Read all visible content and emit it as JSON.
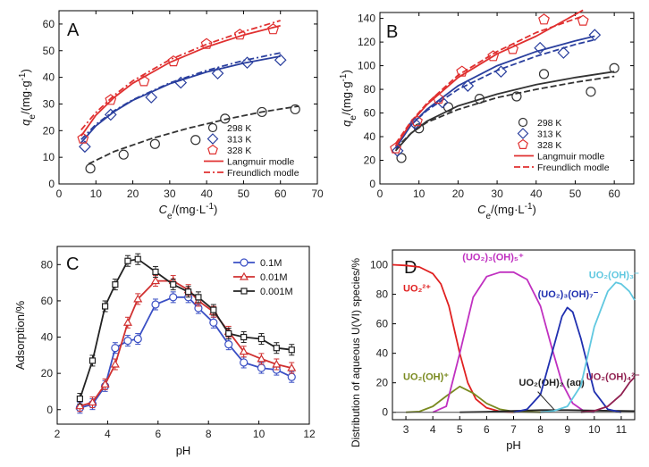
{
  "chart_data": [
    {
      "panel": "A",
      "type": "scatter",
      "xlabel": "Ce/(mg·L-1)",
      "ylabel": "qe/(mg·g-1)",
      "xlim": [
        0,
        70
      ],
      "ylim": [
        0,
        65
      ],
      "xticks": [
        0,
        10,
        20,
        30,
        40,
        50,
        60,
        70
      ],
      "yticks": [
        0,
        10,
        20,
        30,
        40,
        50,
        60
      ],
      "legend": "bottom-right",
      "legend_entries": [
        "298 K",
        "313 K",
        "328 K",
        "Langmuir modle",
        "Freundlich modle"
      ],
      "series": [
        {
          "name": "298 K",
          "marker": "circle",
          "color": "#333333",
          "x": [
            8.5,
            17.5,
            26,
            37,
            45,
            55,
            64
          ],
          "y": [
            5.8,
            11,
            15,
            16.5,
            24.5,
            27,
            28
          ]
        },
        {
          "name": "313 K",
          "marker": "diamond",
          "color": "#2a3f9e",
          "x": [
            7,
            14,
            25,
            33,
            43,
            51,
            60
          ],
          "y": [
            14,
            26,
            32.5,
            38,
            41.5,
            45.5,
            46.5
          ]
        },
        {
          "name": "328 K",
          "marker": "pentagon",
          "color": "#e03030",
          "x": [
            6.5,
            14,
            23,
            31,
            40,
            49,
            58
          ],
          "y": [
            17,
            31.5,
            38.5,
            46,
            52.5,
            56,
            58
          ]
        }
      ],
      "fits": [
        {
          "series": "298 K",
          "model": "Freundlich",
          "x": [
            8,
            15,
            25,
            35,
            45,
            55,
            65
          ],
          "y": [
            7.5,
            12.2,
            17.0,
            20.9,
            24.2,
            27.0,
            29.2
          ]
        },
        {
          "series": "313 K",
          "model": "Langmuir",
          "x": [
            6,
            10,
            15,
            20,
            30,
            40,
            50,
            60
          ],
          "y": [
            15.5,
            21.8,
            27.2,
            31.4,
            37.6,
            42.0,
            45.3,
            47.9
          ]
        },
        {
          "series": "313 K",
          "model": "Freundlich",
          "x": [
            6,
            10,
            15,
            20,
            30,
            40,
            50,
            60
          ],
          "y": [
            16.7,
            22.3,
            27.5,
            31.6,
            37.9,
            42.6,
            46.3,
            49.2
          ]
        },
        {
          "series": "328 K",
          "model": "Langmuir",
          "x": [
            6,
            10,
            15,
            20,
            30,
            40,
            50,
            60
          ],
          "y": [
            18.0,
            25.8,
            32.5,
            37.8,
            45.6,
            51.4,
            55.9,
            59.4
          ]
        },
        {
          "series": "328 K",
          "model": "Freundlich",
          "x": [
            6,
            10,
            15,
            20,
            30,
            40,
            50,
            60
          ],
          "y": [
            20.3,
            26.8,
            33.3,
            38.7,
            46.6,
            52.4,
            57.2,
            61.3
          ]
        }
      ]
    },
    {
      "panel": "B",
      "type": "scatter",
      "xlabel": "Ce/(mg·L-1)",
      "ylabel": "qe/(mg·g-1)",
      "xlim": [
        0,
        65
      ],
      "ylim": [
        0,
        145
      ],
      "xticks": [
        0,
        10,
        20,
        30,
        40,
        50,
        60
      ],
      "yticks": [
        0,
        20,
        40,
        60,
        80,
        100,
        120,
        140
      ],
      "legend": "bottom-right",
      "legend_entries": [
        "298 K",
        "313 K",
        "328 K",
        "Langmuir modle",
        "Freundlich modle"
      ],
      "series": [
        {
          "name": "298 K",
          "marker": "circle",
          "color": "#333333",
          "x": [
            5.5,
            10,
            17.5,
            25.5,
            35,
            42,
            54,
            60
          ],
          "y": [
            22,
            47,
            65,
            72,
            74,
            93,
            78,
            98
          ]
        },
        {
          "name": "313 K",
          "marker": "diamond",
          "color": "#2a3f9e",
          "x": [
            4.5,
            9,
            16,
            22.5,
            31,
            41,
            47,
            55
          ],
          "y": [
            28,
            51,
            69,
            83,
            95,
            115,
            111,
            126
          ]
        },
        {
          "name": "328 K",
          "marker": "pentagon",
          "color": "#e03030",
          "x": [
            4,
            9.5,
            15,
            21,
            29,
            34,
            42,
            52
          ],
          "y": [
            30,
            53,
            72,
            95,
            108,
            114,
            139,
            138
          ]
        }
      ],
      "fits": [
        {
          "series": "298 K",
          "model": "Langmuir",
          "x": [
            4,
            8,
            12,
            20,
            30,
            40,
            50,
            60
          ],
          "y": [
            28,
            43,
            53,
            66,
            76,
            84,
            90,
            95
          ]
        },
        {
          "series": "298 K",
          "model": "Freundlich",
          "x": [
            4,
            8,
            12,
            20,
            30,
            40,
            50,
            60
          ],
          "y": [
            30,
            43,
            52,
            63,
            73,
            80,
            86,
            91
          ]
        },
        {
          "series": "313 K",
          "model": "Langmuir",
          "x": [
            4,
            8,
            12,
            20,
            30,
            40,
            50,
            55
          ],
          "y": [
            30,
            50,
            63,
            83,
            100,
            112,
            121,
            125
          ]
        },
        {
          "series": "313 K",
          "model": "Freundlich",
          "x": [
            4,
            8,
            12,
            20,
            30,
            40,
            50,
            55
          ],
          "y": [
            32,
            50,
            62,
            80,
            96,
            108,
            118,
            122
          ]
        },
        {
          "series": "328 K",
          "model": "Langmuir",
          "x": [
            4,
            8,
            12,
            20,
            30,
            40,
            52
          ],
          "y": [
            32,
            52,
            67,
            90,
            110,
            125,
            147
          ]
        },
        {
          "series": "328 K",
          "model": "Freundlich",
          "x": [
            4,
            8,
            12,
            20,
            30,
            40,
            52
          ],
          "y": [
            34,
            53,
            68,
            92,
            112,
            128,
            142
          ]
        }
      ]
    },
    {
      "panel": "C",
      "type": "line",
      "xlabel": "pH",
      "ylabel": "Adsorption/%",
      "xlim": [
        2,
        12
      ],
      "ylim": [
        -8,
        90
      ],
      "xticks": [
        2,
        4,
        6,
        8,
        10,
        12
      ],
      "yticks": [
        0,
        20,
        40,
        60,
        80
      ],
      "legend": "top-right",
      "error_bars": true,
      "series": [
        {
          "name": "0.1M",
          "marker": "circle",
          "color": "#3a4fc4",
          "x": [
            2.9,
            3.4,
            3.9,
            4.3,
            4.8,
            5.2,
            5.9,
            6.6,
            7.2,
            7.6,
            8.2,
            8.8,
            9.4,
            10.1,
            10.7,
            11.3
          ],
          "y": [
            1,
            3,
            13,
            34,
            38,
            39,
            58,
            62,
            62,
            56,
            48,
            36,
            26,
            23,
            22,
            18
          ]
        },
        {
          "name": "0.01M",
          "marker": "triangle",
          "color": "#d03030",
          "x": [
            2.9,
            3.4,
            3.9,
            4.3,
            4.8,
            5.2,
            5.9,
            6.6,
            7.2,
            7.6,
            8.2,
            8.8,
            9.4,
            10.1,
            10.7,
            11.3
          ],
          "y": [
            2,
            4,
            14,
            25,
            48,
            61,
            71,
            71,
            66,
            60,
            54,
            43,
            32,
            28,
            25,
            23
          ]
        },
        {
          "name": "0.001M",
          "marker": "square",
          "color": "#222222",
          "x": [
            2.9,
            3.4,
            3.9,
            4.3,
            4.8,
            5.2,
            5.9,
            6.6,
            7.2,
            7.6,
            8.2,
            8.8,
            9.4,
            10.1,
            10.7,
            11.3
          ],
          "y": [
            6,
            27,
            57,
            69,
            82,
            83,
            76,
            69,
            65,
            62,
            55,
            42,
            40,
            39,
            34,
            33
          ]
        }
      ]
    },
    {
      "panel": "D",
      "type": "line",
      "xlabel": "pH",
      "ylabel": "Distribution of aqueous U(VI) species/%",
      "xlim": [
        2.5,
        11.5
      ],
      "ylim": [
        -5,
        110
      ],
      "xticks": [
        3,
        4,
        5,
        6,
        7,
        8,
        9,
        10,
        11
      ],
      "yticks": [
        0,
        20,
        40,
        60,
        80,
        100
      ],
      "legend": "none",
      "series": [
        {
          "name": "UO2 2+",
          "label": "UO₂²⁺",
          "color": "#e02020",
          "label_x": 2.9,
          "label_y": 82,
          "x": [
            2.5,
            3,
            3.5,
            4,
            4.3,
            4.6,
            5,
            5.3,
            5.6,
            6,
            6.5,
            7
          ],
          "y": [
            100,
            99.5,
            98.5,
            94,
            87,
            72,
            40,
            20,
            9,
            3,
            0.5,
            0
          ]
        },
        {
          "name": "UO2(OH)+",
          "label": "UO₂(OH)⁺",
          "color": "#7a8a20",
          "label_x": 2.9,
          "label_y": 22,
          "x": [
            3,
            3.5,
            4,
            4.5,
            5,
            5.5,
            6,
            6.5,
            7,
            8
          ],
          "y": [
            0,
            0.5,
            4,
            11,
            17.5,
            13,
            6,
            2,
            0.5,
            0
          ]
        },
        {
          "name": "(UO2)3(OH)5+",
          "label": "(UO₂)₃(OH)₅⁺",
          "color": "#c030c0",
          "label_x": 5.1,
          "label_y": 103,
          "x": [
            4,
            4.5,
            5,
            5.5,
            6,
            6.5,
            7,
            7.5,
            8,
            8.4,
            8.8,
            9.2,
            9.6,
            10
          ],
          "y": [
            0,
            4,
            40,
            78,
            92,
            95,
            95,
            90,
            72,
            45,
            20,
            6,
            1,
            0
          ]
        },
        {
          "name": "UO2(OH)2 (aq)",
          "label": "UO₂(OH)₂ (aq)",
          "color": "#222222",
          "label_x": 7.2,
          "label_y": 18,
          "x": [
            5,
            6,
            7,
            8,
            9,
            10,
            11,
            11.5
          ],
          "y": [
            0,
            0.3,
            1,
            1.5,
            1.5,
            1.2,
            1,
            0.8
          ]
        },
        {
          "name": "(UO2)3(OH)7-",
          "label": "(UO₂)₃(OH)₇⁻",
          "color": "#2030b0",
          "label_x": 7.9,
          "label_y": 78,
          "x": [
            7,
            7.5,
            8,
            8.5,
            8.8,
            9,
            9.2,
            9.5,
            10,
            10.5,
            11
          ],
          "y": [
            0,
            2,
            12,
            45,
            65,
            71,
            68,
            50,
            14,
            2,
            0
          ]
        },
        {
          "name": "UO2(OH)3-",
          "label": "UO₂(OH)₃⁻",
          "color": "#60c8e0",
          "label_x": 9.8,
          "label_y": 91,
          "x": [
            8,
            8.5,
            9,
            9.5,
            10,
            10.5,
            10.8,
            11,
            11.3,
            11.5
          ],
          "y": [
            0,
            1,
            4,
            18,
            58,
            82,
            88,
            87,
            82,
            76
          ]
        },
        {
          "name": "UO2(OH)4 2-",
          "label": "UO₂(OH)₄²⁻",
          "color": "#902050",
          "label_x": 9.7,
          "label_y": 22,
          "x": [
            9.5,
            10,
            10.5,
            11,
            11.3,
            11.5
          ],
          "y": [
            0,
            1,
            4,
            12,
            20,
            24
          ]
        }
      ]
    }
  ],
  "panels": {
    "A": {
      "letter": "A",
      "xlabel_main": "C",
      "xlabel_sub": "e",
      "xlabel_rest": "/(mg·L",
      "xlabel_sup": "-1",
      "xlabel_end": ")",
      "ylabel_main": "q",
      "ylabel_sub": "e",
      "ylabel_rest": "/(mg·g",
      "ylabel_sup": "-1",
      "ylabel_end": ")"
    },
    "B": {
      "letter": "B",
      "xlabel_main": "C",
      "xlabel_sub": "e",
      "xlabel_rest": "/(mg·L",
      "xlabel_sup": "-1",
      "xlabel_end": ")",
      "ylabel_main": "q",
      "ylabel_sub": "e",
      "ylabel_rest": "/(mg·g",
      "ylabel_sup": "-1",
      "ylabel_end": ")"
    },
    "C": {
      "letter": "C",
      "xlabel": "pH",
      "ylabel": "Adsorption/%"
    },
    "D": {
      "letter": "D",
      "xlabel": "pH",
      "ylabel": "Distribution of aqueous U(VI) species/%"
    }
  }
}
